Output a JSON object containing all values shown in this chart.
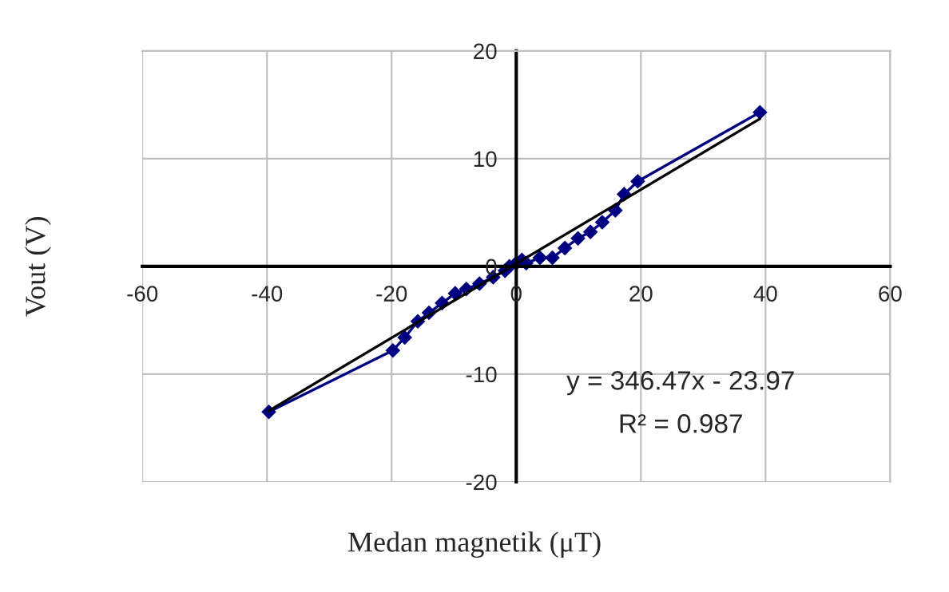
{
  "chart_data": {
    "type": "line",
    "xlabel": "Medan magnetik (μT)",
    "ylabel": "Vout (V)",
    "xlim": [
      -60,
      60
    ],
    "xticks": [
      -60,
      -40,
      -20,
      0,
      20,
      40,
      60
    ],
    "ylim": [
      -20,
      20
    ],
    "yticks": [
      -20,
      -10,
      0,
      10,
      20
    ],
    "grid": true,
    "line_style": "solid",
    "series": [
      {
        "color": "#000080",
        "marker": "diamond",
        "x": [
          -39.7,
          -19.8,
          -17.9,
          -15.8,
          -14.0,
          -11.9,
          -9.8,
          -8.0,
          -5.9,
          -3.7,
          -1.8,
          -1.1,
          0.0,
          0.9,
          1.6,
          3.8,
          5.8,
          7.8,
          9.9,
          11.9,
          13.8,
          15.9,
          17.3,
          19.5,
          39.1
        ],
        "values": [
          -13.5,
          -7.8,
          -6.6,
          -5.1,
          -4.3,
          -3.4,
          -2.5,
          -2.1,
          -1.6,
          -1.0,
          -0.4,
          0.0,
          0.3,
          0.6,
          0.3,
          0.8,
          0.8,
          1.7,
          2.6,
          3.2,
          4.1,
          5.2,
          6.7,
          7.9,
          14.3
        ]
      },
      {
        "color": "#000000",
        "marker": "none",
        "x": [
          -39.7,
          39.1
        ],
        "values": [
          -13.4,
          13.7
        ]
      }
    ],
    "annotations": [
      "y = 346.47x - 23.97",
      "R² = 0.987"
    ]
  }
}
